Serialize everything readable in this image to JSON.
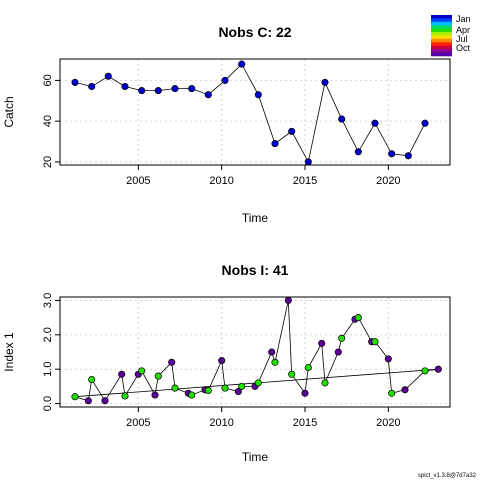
{
  "chart_data": [
    {
      "type": "line",
      "title": "Nobs C: 22",
      "xlabel": "Time",
      "ylabel": "Catch",
      "xlim": [
        2000.3,
        2023.7
      ],
      "ylim": [
        18.5,
        70.5
      ],
      "x_ticks": [
        2005,
        2010,
        2015,
        2020
      ],
      "y_ticks": [
        20,
        40,
        60
      ],
      "grid": true,
      "series": [
        {
          "color": "#0000cc",
          "x": [
            2001.2,
            2002.2,
            2003.2,
            2004.2,
            2005.2,
            2006.2,
            2007.2,
            2008.2,
            2009.2,
            2010.2,
            2011.2,
            2012.2,
            2013.2,
            2014.2,
            2015.2,
            2016.2,
            2017.2,
            2018.2,
            2019.2,
            2020.2,
            2021.2,
            2022.2
          ],
          "values": [
            59,
            57,
            62,
            57,
            55,
            55,
            56,
            56,
            53,
            60,
            68,
            53,
            29,
            35,
            20,
            59,
            41,
            25,
            39,
            24,
            23,
            39
          ]
        }
      ]
    },
    {
      "type": "line",
      "title": "Nobs I: 41",
      "xlabel": "Time",
      "ylabel": "Index 1",
      "xlim": [
        2000.3,
        2023.7
      ],
      "ylim": [
        -0.1,
        3.1
      ],
      "x_ticks": [
        2005,
        2010,
        2015,
        2020
      ],
      "y_ticks": [
        "0.0",
        "1.0",
        "2.0",
        "3.0"
      ],
      "grid": true,
      "series": [
        {
          "name": "purple points",
          "color": "#5b0096",
          "x": [
            2002.0,
            2003.0,
            2004.0,
            2005.0,
            2006.0,
            2007.0,
            2008.0,
            2009.0,
            2010.0,
            2011.0,
            2012.0,
            2013.0,
            2014.0,
            2015.0,
            2016.0,
            2017.0,
            2018.0,
            2019.0,
            2020.0,
            2021.0,
            2023.0
          ],
          "values": [
            0.08,
            0.08,
            0.85,
            0.85,
            0.25,
            1.2,
            0.3,
            0.4,
            1.25,
            0.35,
            0.5,
            1.5,
            3.0,
            0.3,
            1.75,
            1.5,
            2.45,
            1.8,
            1.3,
            0.4,
            1.0
          ]
        },
        {
          "name": "green points",
          "color": "#22dd00",
          "x": [
            2001.2,
            2002.2,
            2004.2,
            2005.2,
            2006.2,
            2007.2,
            2008.2,
            2009.2,
            2010.2,
            2011.2,
            2012.2,
            2013.2,
            2014.2,
            2015.2,
            2016.2,
            2017.2,
            2018.2,
            2019.2,
            2020.2,
            2022.2
          ],
          "values": [
            0.2,
            0.7,
            0.22,
            0.95,
            0.8,
            0.45,
            0.25,
            0.38,
            0.45,
            0.5,
            0.6,
            1.2,
            0.85,
            1.05,
            0.6,
            1.9,
            2.5,
            1.8,
            0.3,
            0.95
          ]
        }
      ]
    }
  ],
  "legend": {
    "position": "top-right",
    "months": [
      "Jan",
      "Apr",
      "Jul",
      "Oct"
    ],
    "gradient": [
      "#0000cc",
      "#0044ff",
      "#00bbff",
      "#00dd66",
      "#22dd00",
      "#aaee00",
      "#ffdd00",
      "#ff8800",
      "#ff2200",
      "#cc0044",
      "#880099",
      "#5500aa"
    ]
  },
  "footer": "spict_v1.3.8@7d7a32"
}
